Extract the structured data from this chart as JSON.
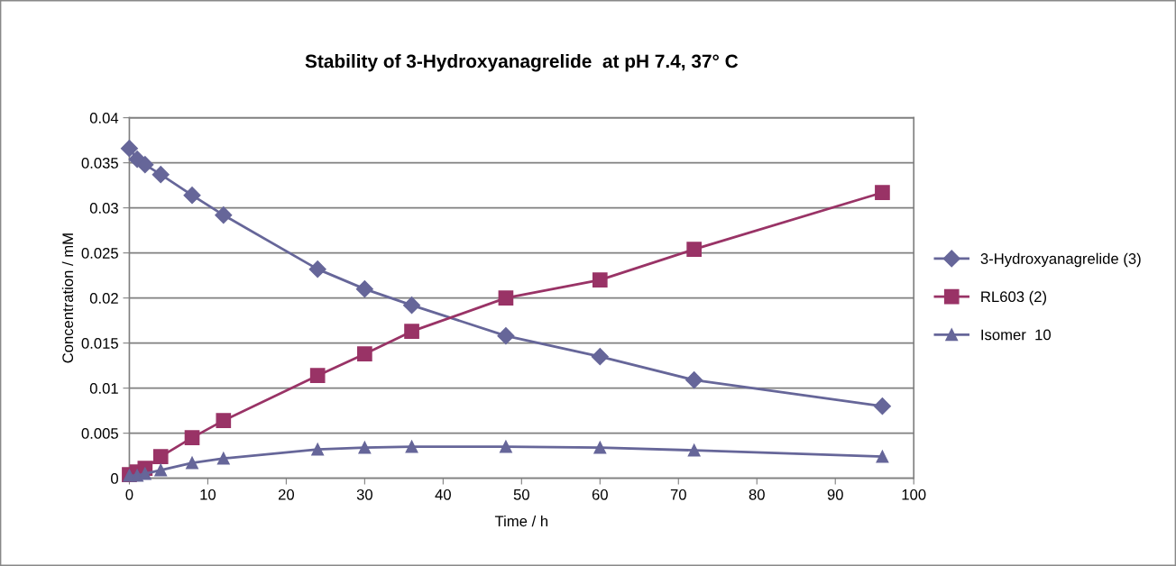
{
  "chart_data": {
    "type": "line",
    "title": "Stability of 3-Hydroxyanagrelide  at pH 7.4, 37° C",
    "xlabel": "Time / h",
    "ylabel": "Concentration / mM",
    "x": [
      0,
      1,
      2,
      4,
      8,
      12,
      24,
      30,
      36,
      48,
      60,
      72,
      96
    ],
    "series": [
      {
        "name": "3-Hydroxyanagrelide (3)",
        "color": "#666699",
        "marker": "diamond",
        "values": [
          0.0366,
          0.0354,
          0.0348,
          0.0337,
          0.0314,
          0.0292,
          0.0232,
          0.021,
          0.0192,
          0.0158,
          0.0135,
          0.0109,
          0.008
        ]
      },
      {
        "name": "RL603 (2)",
        "color": "#993366",
        "marker": "square",
        "values": [
          0.0004,
          0.0007,
          0.0011,
          0.0024,
          0.0045,
          0.0064,
          0.0114,
          0.0138,
          0.0163,
          0.02,
          0.022,
          0.0254,
          0.0317
        ]
      },
      {
        "name": "Isomer  10",
        "color": "#666699",
        "marker": "triangle",
        "values": [
          0.0003,
          0.0003,
          0.0005,
          0.0009,
          0.0017,
          0.0022,
          0.0032,
          0.0034,
          0.0035,
          0.0035,
          0.0034,
          0.0031,
          0.0024
        ]
      }
    ],
    "xlim": [
      0,
      100
    ],
    "xticks": [
      0,
      10,
      20,
      30,
      40,
      50,
      60,
      70,
      80,
      90,
      100
    ],
    "ylim": [
      0,
      0.04
    ],
    "yticks": [
      {
        "value": 0,
        "label": "0"
      },
      {
        "value": 0.005,
        "label": "0.005"
      },
      {
        "value": 0.01,
        "label": "0.01"
      },
      {
        "value": 0.015,
        "label": "0.015"
      },
      {
        "value": 0.02,
        "label": "0.02"
      },
      {
        "value": 0.025,
        "label": "0.025"
      },
      {
        "value": 0.03,
        "label": "0.03"
      },
      {
        "value": 0.035,
        "label": "0.035"
      },
      {
        "value": 0.04,
        "label": "0.04"
      }
    ],
    "grid": "y",
    "legend": "right",
    "line_style": "solid"
  }
}
